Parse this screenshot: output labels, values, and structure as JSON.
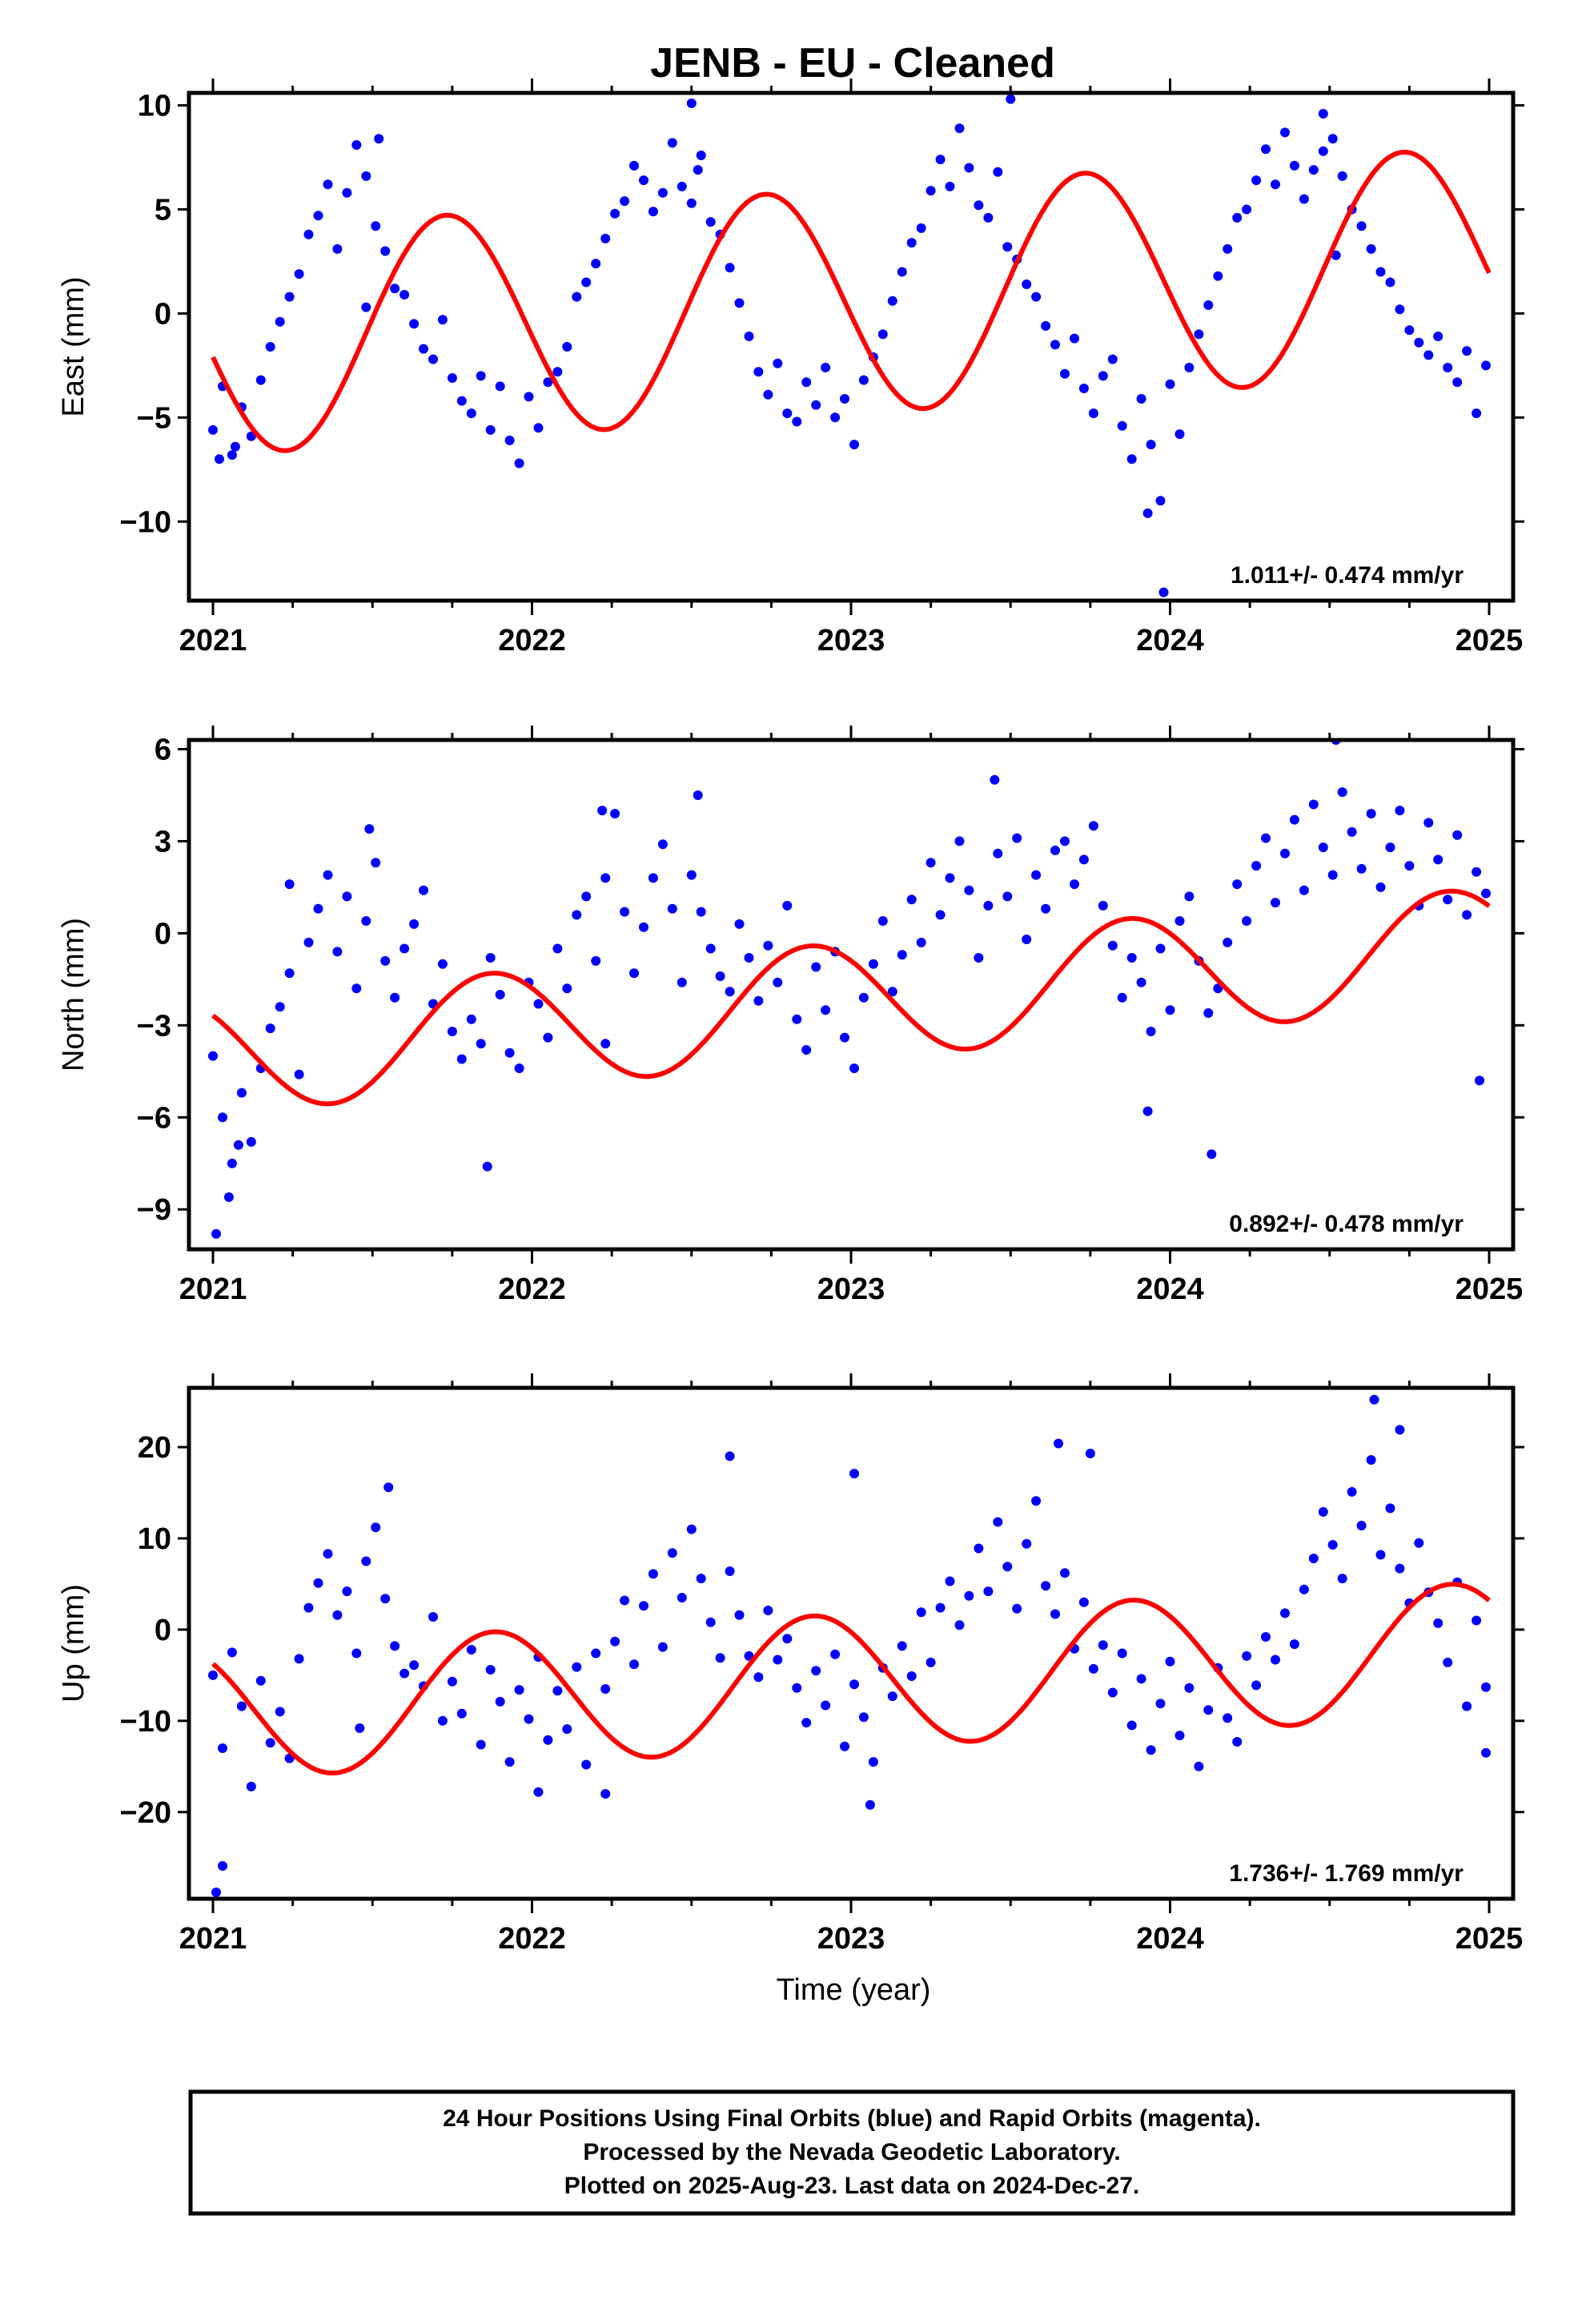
{
  "figure": {
    "title": "JENB  - EU - Cleaned",
    "xlabel": "Time (year)",
    "footer": [
      "24 Hour Positions Using Final Orbits (blue) and Rapid Orbits (magenta).",
      "Processed by the Nevada Geodetic Laboratory.",
      "Plotted on 2025-Aug-23. Last data on 2024-Dec-27."
    ],
    "colors": {
      "points": "#0000ff",
      "fit": "#ff0000",
      "frame": "#000000",
      "background": "#ffffff"
    }
  },
  "chart_data": [
    {
      "type": "scatter",
      "ylabel": "East (mm)",
      "xlim": [
        2021.0,
        2025.0
      ],
      "ylim": [
        -13.8,
        10.6
      ],
      "xticks": [
        2021,
        2022,
        2023,
        2024,
        2025
      ],
      "yticks": [
        -10,
        -5,
        0,
        5,
        10
      ],
      "rate": "1.011+/- 0.474 mm/yr",
      "fit": {
        "offset": 0.6,
        "rate": 1.011,
        "annual_amp": -5.4,
        "phase_shift": 0.23
      },
      "series": [
        {
          "x": [
            2021.0,
            2021.03,
            2021.06,
            2021.09,
            2021.12,
            2021.15,
            2021.18,
            2021.21,
            2021.24,
            2021.27,
            2021.3,
            2021.33,
            2021.36,
            2021.39,
            2021.42,
            2021.45,
            2021.48,
            2021.51,
            2021.54,
            2021.57,
            2021.6,
            2021.63,
            2021.66,
            2021.69,
            2021.72,
            2021.75,
            2021.78,
            2021.81,
            2021.84,
            2021.87,
            2021.9,
            2021.93,
            2021.96,
            2021.99,
            2022.02,
            2022.05,
            2022.08,
            2022.11,
            2022.14,
            2022.17,
            2022.2,
            2022.23,
            2022.26,
            2022.29,
            2022.32,
            2022.35,
            2022.38,
            2022.41,
            2022.44,
            2022.47,
            2022.5,
            2022.53,
            2022.56,
            2022.59,
            2022.62,
            2022.65,
            2022.68,
            2022.71,
            2022.74,
            2022.77,
            2022.8,
            2022.83,
            2022.86,
            2022.89,
            2022.92,
            2022.95,
            2022.98,
            2023.01,
            2023.04,
            2023.07,
            2023.1,
            2023.13,
            2023.16,
            2023.19,
            2023.22,
            2023.25,
            2023.28,
            2023.31,
            2023.34,
            2023.37,
            2023.4,
            2023.43,
            2023.46,
            2023.49,
            2023.52,
            2023.55,
            2023.58,
            2023.61,
            2023.64,
            2023.67,
            2023.7,
            2023.73,
            2023.76,
            2023.79,
            2023.82,
            2023.85,
            2023.88,
            2023.91,
            2023.94,
            2023.97,
            2024.0,
            2024.03,
            2024.06,
            2024.09,
            2024.12,
            2024.15,
            2024.18,
            2024.21,
            2024.24,
            2024.27,
            2024.3,
            2024.33,
            2024.36,
            2024.39,
            2024.42,
            2024.45,
            2024.48,
            2024.51,
            2024.54,
            2024.57,
            2024.6,
            2024.63,
            2024.66,
            2024.69,
            2024.72,
            2024.75,
            2024.78,
            2024.81,
            2024.84,
            2024.87,
            2024.9,
            2024.93,
            2024.96,
            2024.99,
            2021.02,
            2021.07,
            2021.48,
            2021.52,
            2022.5,
            2022.52,
            2023.5,
            2023.93,
            2023.98,
            2024.52,
            2024.48
          ],
          "y": [
            -5.6,
            -3.5,
            -6.8,
            -4.5,
            -5.9,
            -3.2,
            -1.6,
            -0.4,
            0.8,
            1.9,
            3.8,
            4.7,
            6.2,
            3.1,
            5.8,
            8.1,
            6.6,
            4.2,
            3.0,
            1.2,
            0.9,
            -0.5,
            -1.7,
            -2.2,
            -0.3,
            -3.1,
            -4.2,
            -4.8,
            -3.0,
            -5.6,
            -3.5,
            -6.1,
            -7.2,
            -4.0,
            -5.5,
            -3.3,
            -2.8,
            -1.6,
            0.8,
            1.5,
            2.4,
            3.6,
            4.8,
            5.4,
            7.1,
            6.4,
            4.9,
            5.8,
            8.2,
            6.1,
            5.3,
            7.6,
            4.4,
            3.8,
            2.2,
            0.5,
            -1.1,
            -2.8,
            -3.9,
            -2.4,
            -4.8,
            -5.2,
            -3.3,
            -4.4,
            -2.6,
            -5.0,
            -4.1,
            -6.3,
            -3.2,
            -2.1,
            -1.0,
            0.6,
            2.0,
            3.4,
            4.1,
            5.9,
            7.4,
            6.1,
            8.9,
            7.0,
            5.2,
            4.6,
            6.8,
            3.2,
            2.6,
            1.4,
            0.8,
            -0.6,
            -1.5,
            -2.9,
            -1.2,
            -3.6,
            -4.8,
            -3.0,
            -2.2,
            -5.4,
            -7.0,
            -4.1,
            -6.3,
            -9.0,
            -3.4,
            -5.8,
            -2.6,
            -1.0,
            0.4,
            1.8,
            3.1,
            4.6,
            5.0,
            6.4,
            7.9,
            6.2,
            8.7,
            7.1,
            5.5,
            6.9,
            7.8,
            8.4,
            6.6,
            5.0,
            4.2,
            3.1,
            2.0,
            1.5,
            0.2,
            -0.8,
            -1.4,
            -2.0,
            -1.1,
            -2.6,
            -3.3,
            -1.8,
            -4.8,
            -2.5,
            -7.0,
            -6.4,
            0.3,
            8.4,
            10.1,
            6.9,
            10.3,
            -9.6,
            -13.4,
            2.8,
            9.6
          ],
          "color": "#0000ff"
        }
      ]
    },
    {
      "type": "scatter",
      "ylabel": "North (mm)",
      "xlim": [
        2021.0,
        2025.0
      ],
      "ylim": [
        -10.3,
        6.3
      ],
      "xticks": [
        2021,
        2022,
        2023,
        2024,
        2025
      ],
      "yticks": [
        -9,
        -6,
        -3,
        0,
        3,
        6
      ],
      "rate": "0.892+/- 0.478 mm/yr",
      "fit": {
        "offset": -2.2,
        "rate": 0.892,
        "annual_amp": -1.9,
        "phase_shift": 0.37
      },
      "series": [
        {
          "x": [
            2021.0,
            2021.03,
            2021.06,
            2021.09,
            2021.12,
            2021.15,
            2021.18,
            2021.21,
            2021.24,
            2021.27,
            2021.3,
            2021.33,
            2021.36,
            2021.39,
            2021.42,
            2021.45,
            2021.48,
            2021.51,
            2021.54,
            2021.57,
            2021.6,
            2021.63,
            2021.66,
            2021.69,
            2021.72,
            2021.75,
            2021.78,
            2021.81,
            2021.84,
            2021.87,
            2021.9,
            2021.93,
            2021.96,
            2021.99,
            2022.02,
            2022.05,
            2022.08,
            2022.11,
            2022.14,
            2022.17,
            2022.2,
            2022.23,
            2022.26,
            2022.29,
            2022.32,
            2022.35,
            2022.38,
            2022.41,
            2022.44,
            2022.47,
            2022.5,
            2022.53,
            2022.56,
            2022.59,
            2022.62,
            2022.65,
            2022.68,
            2022.71,
            2022.74,
            2022.77,
            2022.8,
            2022.83,
            2022.86,
            2022.89,
            2022.92,
            2022.95,
            2022.98,
            2023.01,
            2023.04,
            2023.07,
            2023.1,
            2023.13,
            2023.16,
            2023.19,
            2023.22,
            2023.25,
            2023.28,
            2023.31,
            2023.34,
            2023.37,
            2023.4,
            2023.43,
            2023.46,
            2023.49,
            2023.52,
            2023.55,
            2023.58,
            2023.61,
            2023.64,
            2023.67,
            2023.7,
            2023.73,
            2023.76,
            2023.79,
            2023.82,
            2023.85,
            2023.88,
            2023.91,
            2023.94,
            2023.97,
            2024.0,
            2024.03,
            2024.06,
            2024.09,
            2024.12,
            2024.15,
            2024.18,
            2024.21,
            2024.24,
            2024.27,
            2024.3,
            2024.33,
            2024.36,
            2024.39,
            2024.42,
            2024.45,
            2024.48,
            2024.51,
            2024.54,
            2024.57,
            2024.6,
            2024.63,
            2024.66,
            2024.69,
            2024.72,
            2024.75,
            2024.78,
            2024.81,
            2024.84,
            2024.87,
            2024.9,
            2024.93,
            2024.96,
            2024.99,
            2021.01,
            2021.05,
            2021.08,
            2021.24,
            2021.49,
            2021.86,
            2022.22,
            2022.23,
            2022.52,
            2023.45,
            2023.93,
            2024.13,
            2024.52,
            2024.97
          ],
          "y": [
            -4.0,
            -6.0,
            -7.5,
            -5.2,
            -6.8,
            -4.4,
            -3.1,
            -2.4,
            -1.3,
            -4.6,
            -0.3,
            0.8,
            1.9,
            -0.6,
            1.2,
            -1.8,
            0.4,
            2.3,
            -0.9,
            -2.1,
            -0.5,
            0.3,
            1.4,
            -2.3,
            -1.0,
            -3.2,
            -4.1,
            -2.8,
            -3.6,
            -0.8,
            -2.0,
            -3.9,
            -4.4,
            -1.6,
            -2.3,
            -3.4,
            -0.5,
            -1.8,
            0.6,
            1.2,
            -0.9,
            1.8,
            3.9,
            0.7,
            -1.3,
            0.2,
            1.8,
            2.9,
            0.8,
            -1.6,
            1.9,
            0.7,
            -0.5,
            -1.4,
            -1.9,
            0.3,
            -0.8,
            -2.2,
            -0.4,
            -1.6,
            0.9,
            -2.8,
            -3.8,
            -1.1,
            -2.5,
            -0.6,
            -3.4,
            -4.4,
            -2.1,
            -1.0,
            0.4,
            -1.9,
            -0.7,
            1.1,
            -0.3,
            2.3,
            0.6,
            1.8,
            3.0,
            1.4,
            -0.8,
            0.9,
            2.6,
            1.2,
            3.1,
            -0.2,
            1.9,
            0.8,
            2.7,
            3.0,
            1.6,
            2.4,
            3.5,
            0.9,
            -0.4,
            -2.1,
            -0.8,
            -1.6,
            -3.2,
            -0.5,
            -2.5,
            0.4,
            1.2,
            -0.9,
            -2.6,
            -1.8,
            -0.3,
            1.6,
            0.4,
            2.2,
            3.1,
            1.0,
            2.6,
            3.7,
            1.4,
            4.2,
            2.8,
            1.9,
            4.6,
            3.3,
            2.1,
            3.9,
            1.5,
            2.8,
            4.0,
            2.2,
            0.9,
            3.6,
            2.4,
            1.1,
            3.2,
            0.6,
            2.0,
            1.3,
            -9.8,
            -8.6,
            -6.9,
            1.6,
            3.4,
            -7.6,
            4.0,
            -3.6,
            4.5,
            5.0,
            -5.8,
            -7.2,
            6.3,
            -4.8
          ],
          "color": "#0000ff"
        }
      ]
    },
    {
      "type": "scatter",
      "ylabel": "Up (mm)",
      "xlim": [
        2021.0,
        2025.0
      ],
      "ylim": [
        -29.5,
        26.5
      ],
      "xticks": [
        2021,
        2022,
        2023,
        2024,
        2025
      ],
      "yticks": [
        -20,
        -10,
        0,
        10,
        20
      ],
      "rate": "1.736+/- 1.769 mm/yr",
      "fit": {
        "offset": -5.6,
        "rate": 1.736,
        "annual_amp": -7.3,
        "phase_shift": 0.38
      },
      "series": [
        {
          "x": [
            2021.0,
            2021.03,
            2021.06,
            2021.09,
            2021.12,
            2021.15,
            2021.18,
            2021.21,
            2021.24,
            2021.27,
            2021.3,
            2021.33,
            2021.36,
            2021.39,
            2021.42,
            2021.45,
            2021.48,
            2021.51,
            2021.54,
            2021.57,
            2021.6,
            2021.63,
            2021.66,
            2021.69,
            2021.72,
            2021.75,
            2021.78,
            2021.81,
            2021.84,
            2021.87,
            2021.9,
            2021.93,
            2021.96,
            2021.99,
            2022.02,
            2022.05,
            2022.08,
            2022.11,
            2022.14,
            2022.17,
            2022.2,
            2022.23,
            2022.26,
            2022.29,
            2022.32,
            2022.35,
            2022.38,
            2022.41,
            2022.44,
            2022.47,
            2022.5,
            2022.53,
            2022.56,
            2022.59,
            2022.62,
            2022.65,
            2022.68,
            2022.71,
            2022.74,
            2022.77,
            2022.8,
            2022.83,
            2022.86,
            2022.89,
            2022.92,
            2022.95,
            2022.98,
            2023.01,
            2023.04,
            2023.07,
            2023.1,
            2023.13,
            2023.16,
            2023.19,
            2023.22,
            2023.25,
            2023.28,
            2023.31,
            2023.34,
            2023.37,
            2023.4,
            2023.43,
            2023.46,
            2023.49,
            2023.52,
            2023.55,
            2023.58,
            2023.61,
            2023.64,
            2023.67,
            2023.7,
            2023.73,
            2023.76,
            2023.79,
            2023.82,
            2023.85,
            2023.88,
            2023.91,
            2023.94,
            2023.97,
            2024.0,
            2024.03,
            2024.06,
            2024.09,
            2024.12,
            2024.15,
            2024.18,
            2024.21,
            2024.24,
            2024.27,
            2024.3,
            2024.33,
            2024.36,
            2024.39,
            2024.42,
            2024.45,
            2024.48,
            2024.51,
            2024.54,
            2024.57,
            2024.6,
            2024.63,
            2024.66,
            2024.69,
            2024.72,
            2024.75,
            2024.78,
            2024.81,
            2024.84,
            2024.87,
            2024.9,
            2024.93,
            2024.96,
            2024.99,
            2021.01,
            2021.03,
            2021.46,
            2021.55,
            2022.02,
            2022.23,
            2022.62,
            2023.01,
            2023.06,
            2023.65,
            2023.75,
            2024.64,
            2024.72,
            2024.99
          ],
          "y": [
            -5.0,
            -13.0,
            -2.5,
            -8.4,
            -17.2,
            -5.6,
            -12.4,
            -9.0,
            -14.1,
            -3.2,
            2.4,
            5.1,
            8.3,
            1.6,
            4.2,
            -2.6,
            7.5,
            11.2,
            3.4,
            -1.8,
            -4.8,
            -3.9,
            -6.2,
            1.4,
            -10.0,
            -5.7,
            -9.2,
            -2.2,
            -12.6,
            -4.4,
            -7.9,
            -14.5,
            -6.6,
            -9.8,
            -3.0,
            -12.1,
            -6.7,
            -10.9,
            -4.1,
            -14.8,
            -2.6,
            -6.5,
            -1.3,
            3.2,
            -3.8,
            2.6,
            6.1,
            -1.9,
            8.4,
            3.5,
            11.0,
            5.6,
            0.8,
            -3.1,
            6.4,
            1.6,
            -2.9,
            -5.2,
            2.1,
            -3.3,
            -1.0,
            -6.4,
            -10.2,
            -4.5,
            -8.3,
            -2.7,
            -12.8,
            -6.0,
            -9.6,
            -14.5,
            -4.2,
            -7.3,
            -1.8,
            -5.1,
            1.9,
            -3.6,
            2.4,
            5.3,
            0.5,
            3.7,
            8.9,
            4.2,
            11.8,
            6.9,
            2.3,
            9.4,
            14.1,
            4.8,
            1.7,
            6.2,
            -2.1,
            3.0,
            -4.3,
            -1.7,
            -6.9,
            -2.6,
            -10.5,
            -5.4,
            -13.2,
            -8.1,
            -3.5,
            -11.6,
            -6.4,
            -15.0,
            -8.8,
            -4.2,
            -9.7,
            -12.3,
            -2.9,
            -6.1,
            -0.8,
            -3.3,
            1.8,
            -1.6,
            4.4,
            7.8,
            12.9,
            9.3,
            5.6,
            15.1,
            11.4,
            18.6,
            8.2,
            13.3,
            6.7,
            2.9,
            9.5,
            4.1,
            0.7,
            -3.6,
            5.2,
            -8.4,
            1.0,
            -6.3,
            -28.8,
            -25.9,
            -10.8,
            15.6,
            -17.8,
            -18.0,
            19.0,
            17.1,
            -19.2,
            20.4,
            19.3,
            25.2,
            21.9,
            -13.5
          ],
          "color": "#0000ff"
        }
      ]
    }
  ]
}
